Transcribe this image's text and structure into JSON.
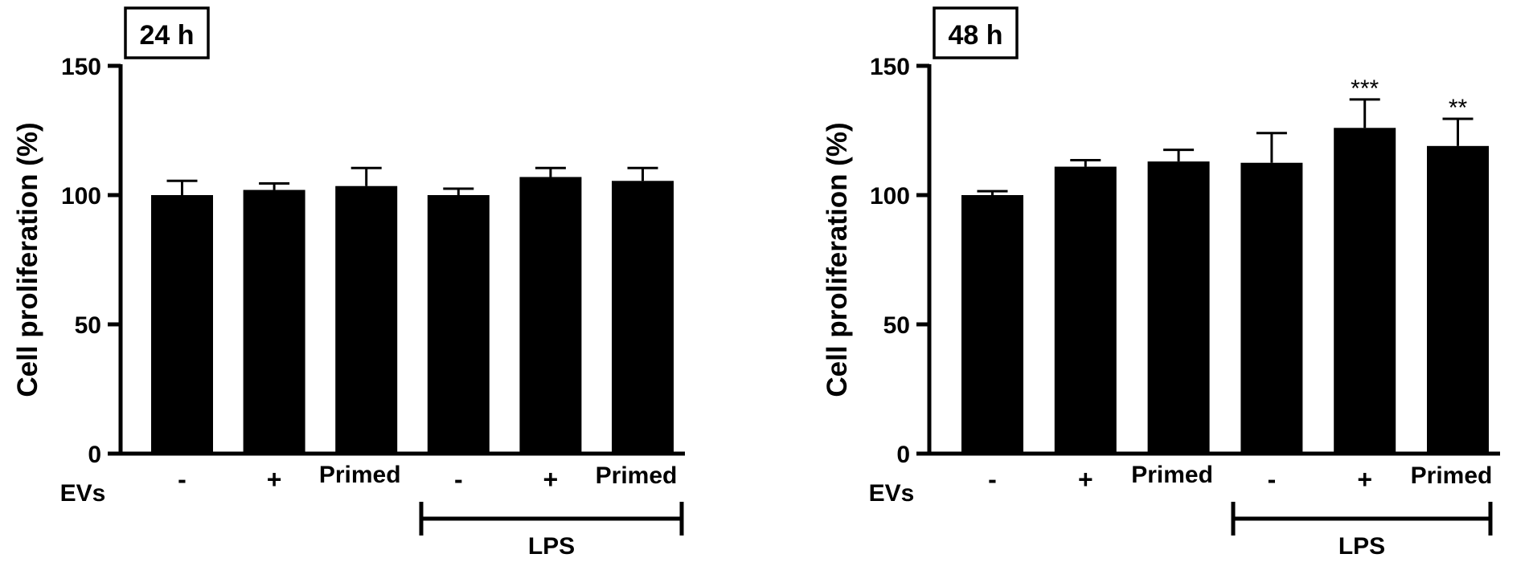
{
  "chart_data": [
    {
      "type": "bar",
      "panel_label": "24 h",
      "ylabel": "Cell proliferation (%)",
      "ylim": [
        0,
        150
      ],
      "yticks": [
        0,
        50,
        100,
        150
      ],
      "row_label": "EVs",
      "categories": [
        "-",
        "+",
        "Primed",
        "-",
        "+",
        "Primed"
      ],
      "values": [
        100,
        102,
        103.5,
        100,
        107,
        105.5
      ],
      "errors": [
        5.5,
        2.5,
        7,
        2.5,
        3.5,
        5
      ],
      "significance": [
        "",
        "",
        "",
        "",
        "",
        ""
      ],
      "group_label": "LPS",
      "grid": false
    },
    {
      "type": "bar",
      "panel_label": "48 h",
      "ylabel": "Cell proliferation (%)",
      "ylim": [
        0,
        150
      ],
      "yticks": [
        0,
        50,
        100,
        150
      ],
      "row_label": "EVs",
      "categories": [
        "-",
        "+",
        "Primed",
        "-",
        "+",
        "Primed"
      ],
      "values": [
        100,
        111,
        113,
        112.5,
        126,
        119
      ],
      "errors": [
        1.5,
        2.5,
        4.5,
        11.5,
        11,
        10.5
      ],
      "significance": [
        "",
        "",
        "",
        "",
        "***",
        "**"
      ],
      "group_label": "LPS",
      "grid": false
    }
  ]
}
